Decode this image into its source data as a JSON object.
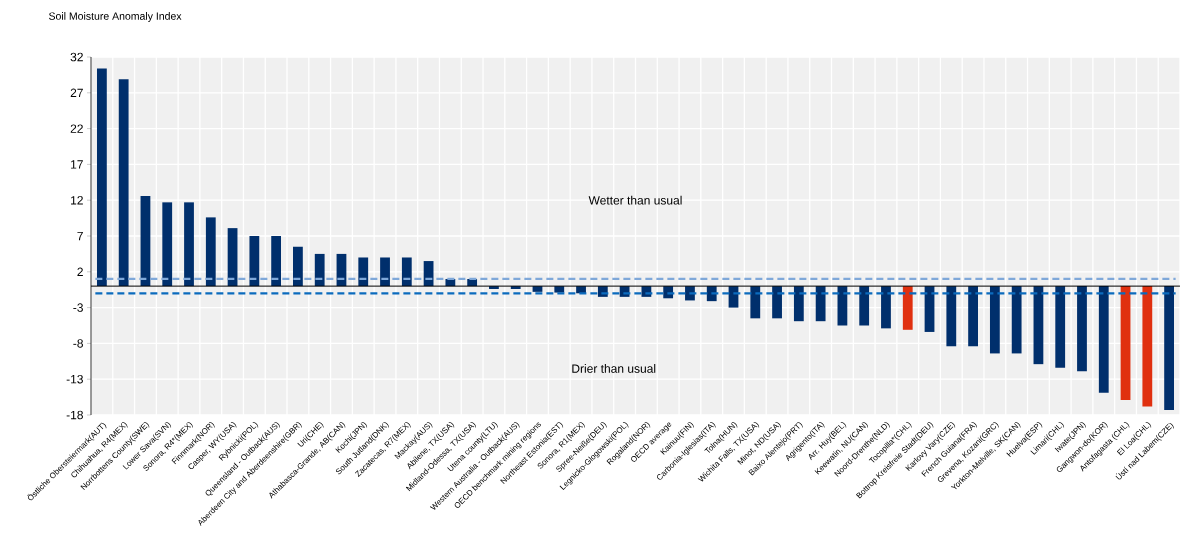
{
  "chart_data": {
    "type": "bar",
    "ylabel": "Soil Moisture Anomaly Index",
    "categories": [
      "Östliche Obersteiermark(AUT)",
      "Chihuahua, R4(MEX)",
      "Norrbottens County(SWE)",
      "Lower Sava(SVN)",
      "Sonora, R4*(MEX)",
      "Finnmark(NOR)",
      "Casper, WY(USA)",
      "Rybnicki(POL)",
      "Queensland - Outback(AUS)",
      "Aberdeen City and Aberdeenshire(GBR)",
      "Uri(CHE)",
      "Athabasca-Grande, AB(CAN)",
      "Kochi(JPN)",
      "South Jutland(DNK)",
      "Zacatecas, R7(MEX)",
      "Mackay(AUS)",
      "Abilene, TX(USA)",
      "Midland-Odessa, TX(USA)",
      "Utena county(LTU)",
      "Western Australia - Outback(AUS)",
      "OECD benchmark mining regions",
      "Northeast Estonia(EST)",
      "Sonora, R1(MEX)",
      "Spree-Neiße(DEU)",
      "Legnicko-Glogowski(POL)",
      "Rogaland(NOR)",
      "OECD average",
      "Kainuu(FIN)",
      "Carbonia-Iglesias(ITA)",
      "Tolna(HUN)",
      "Wichita Falls, TX(USA)",
      "Minot, ND(USA)",
      "Baixo Alentejo(PRT)",
      "Agrigento(ITA)",
      "Arr. Huy(BEL)",
      "Keewatin, NU(CAN)",
      "Noord-Drenthe(NLD)",
      "Tocopilla*(CHL)",
      "Bottrop Kreisfreie Stadt(DEU)",
      "Karlovy Vary(CZE)",
      "French Guiana(FRA)",
      "Grevena, Kozani(GRC)",
      "Yorkton-Melville, SK(CAN)",
      "Huelva(ESP)",
      "Limari(CHL)",
      "Iwate(JPN)",
      "Gangwon-do(KOR)",
      "Antofagasta (CHL)",
      "El Loa(CHL)",
      "Ústí nad Labem(CZE)"
    ],
    "values": [
      30.4,
      28.9,
      12.6,
      11.7,
      11.7,
      9.6,
      8.1,
      7.0,
      7.0,
      5.5,
      4.5,
      4.5,
      4.0,
      4.0,
      4.0,
      3.5,
      1.0,
      1.0,
      -0.4,
      -0.4,
      -0.8,
      -0.9,
      -1.0,
      -1.5,
      -1.5,
      -1.5,
      -1.7,
      -2.0,
      -2.1,
      -3.0,
      -4.5,
      -4.5,
      -4.9,
      -4.9,
      -5.5,
      -5.5,
      -5.9,
      -6.1,
      -6.4,
      -8.4,
      -8.4,
      -9.4,
      -9.4,
      -10.9,
      -11.4,
      -11.9,
      -14.9,
      -15.9,
      -16.8,
      -17.3
    ],
    "colors": [
      "#002f6c",
      "#002f6c",
      "#002f6c",
      "#002f6c",
      "#002f6c",
      "#002f6c",
      "#002f6c",
      "#002f6c",
      "#002f6c",
      "#002f6c",
      "#002f6c",
      "#002f6c",
      "#002f6c",
      "#002f6c",
      "#002f6c",
      "#002f6c",
      "#002f6c",
      "#002f6c",
      "#002f6c",
      "#002f6c",
      "#002f6c",
      "#002f6c",
      "#002f6c",
      "#002f6c",
      "#002f6c",
      "#002f6c",
      "#002f6c",
      "#002f6c",
      "#002f6c",
      "#002f6c",
      "#002f6c",
      "#002f6c",
      "#002f6c",
      "#002f6c",
      "#002f6c",
      "#002f6c",
      "#002f6c",
      "#e0300f",
      "#002f6c",
      "#002f6c",
      "#002f6c",
      "#002f6c",
      "#002f6c",
      "#002f6c",
      "#002f6c",
      "#002f6c",
      "#002f6c",
      "#e0300f",
      "#e0300f",
      "#002f6c"
    ],
    "ylim": [
      -18,
      32
    ],
    "yticks": [
      32,
      27,
      22,
      17,
      12,
      7,
      2,
      -3,
      -8,
      -13,
      -18
    ],
    "grid": true,
    "ref_lines": [
      {
        "axis": "y",
        "value": 1,
        "color": "#7fa8d9",
        "line_style": "dashed"
      },
      {
        "axis": "y",
        "value": -1,
        "color": "#0b6bbd",
        "line_style": "dashed"
      }
    ],
    "annotations": [
      "Wetter than usual",
      "Drier than usual"
    ]
  }
}
